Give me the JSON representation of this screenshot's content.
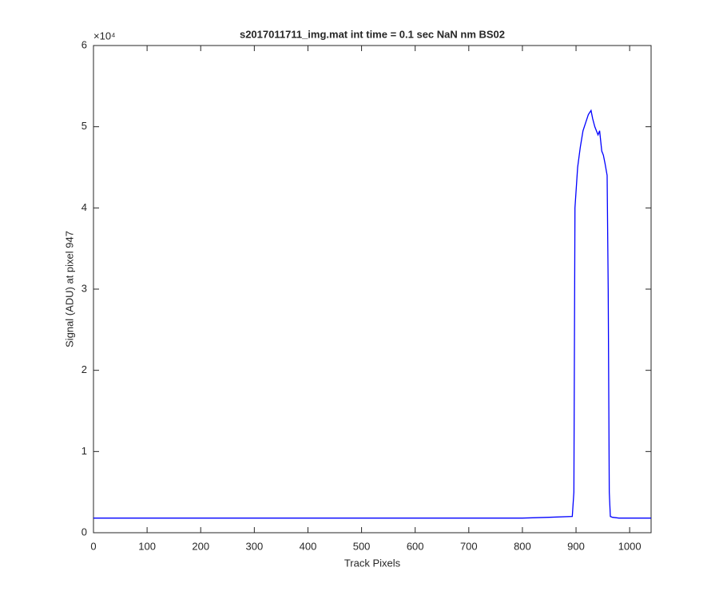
{
  "chart_data": {
    "type": "line",
    "title": "s2017011711_img.mat int time = 0.1 sec  NaN nm BS02",
    "x_label": "Track Pixels",
    "y_label": "Signal (ADU) at pixel 947",
    "y_multiplier": "×10⁴",
    "x": [
      0,
      50,
      100,
      150,
      200,
      250,
      300,
      350,
      400,
      450,
      500,
      550,
      600,
      650,
      700,
      750,
      800,
      850,
      893,
      896,
      898,
      903,
      908,
      913,
      918,
      923,
      928,
      931,
      935,
      938,
      941,
      944,
      948,
      951,
      954,
      958,
      960,
      962,
      964,
      968,
      980,
      1000,
      1040
    ],
    "series": [
      {
        "name": "signal",
        "color": "#0000ff",
        "values": [
          0.18,
          0.18,
          0.18,
          0.18,
          0.18,
          0.18,
          0.18,
          0.18,
          0.18,
          0.18,
          0.18,
          0.18,
          0.18,
          0.18,
          0.18,
          0.18,
          0.18,
          0.19,
          0.2,
          0.5,
          4.0,
          4.5,
          4.75,
          4.95,
          5.05,
          5.15,
          5.2,
          5.1,
          5.0,
          4.95,
          4.9,
          4.95,
          4.7,
          4.65,
          4.55,
          4.4,
          3.0,
          0.5,
          0.2,
          0.19,
          0.18,
          0.18,
          0.18
        ]
      }
    ],
    "xlim": [
      0,
      1040
    ],
    "xticks": [
      0,
      100,
      200,
      300,
      400,
      500,
      600,
      700,
      800,
      900,
      1000
    ],
    "ylim": [
      0,
      6
    ],
    "yticks": [
      0,
      1,
      2,
      3,
      4,
      5,
      6
    ]
  }
}
